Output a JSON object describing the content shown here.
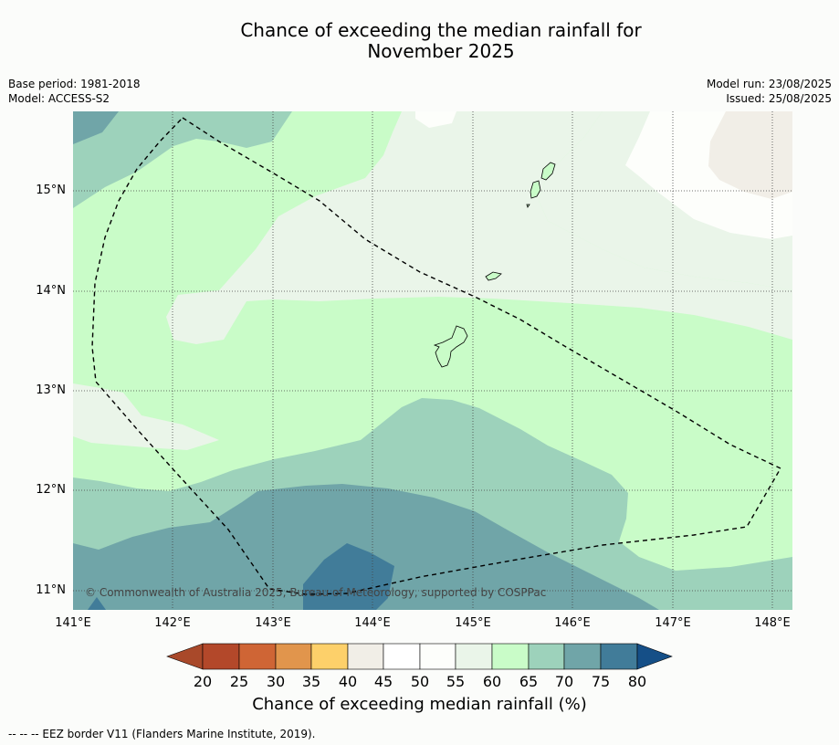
{
  "title_line1": "Chance of exceeding the median rainfall for",
  "title_line2": "November 2025",
  "base_period": "Base period: 1981-2018",
  "model": "Model: ACCESS-S2",
  "model_run": "Model run: 23/08/2025",
  "issued": "Issued: 25/08/2025",
  "lat_labels": [
    "15°N",
    "14°N",
    "13°N",
    "12°N",
    "11°N"
  ],
  "lon_labels": [
    "141°E",
    "142°E",
    "143°E",
    "144°E",
    "145°E",
    "146°E",
    "147°E",
    "148°E"
  ],
  "copyright": "© Commonwealth of Australia 2025, Bureau of Meteorology, supported by COSPPac",
  "colorbar": {
    "ticks": [
      "20",
      "25",
      "30",
      "35",
      "40",
      "45",
      "50",
      "55",
      "60",
      "65",
      "70",
      "75",
      "80"
    ],
    "colors": [
      "#a9492a",
      "#b3482a",
      "#cf6535",
      "#e1954c",
      "#fdd06a",
      "#f1eee7",
      "#ffffff",
      "#fdfefb",
      "#eaf5e9",
      "#c9fcc8",
      "#9dd2bb",
      "#70a5a8",
      "#417c99",
      "#154f87"
    ],
    "title": "Chance of exceeding median rainfall (%)"
  },
  "footnote": "-- -- -- EEZ border V11 (Flanders Marine Institute, 2019)."
}
